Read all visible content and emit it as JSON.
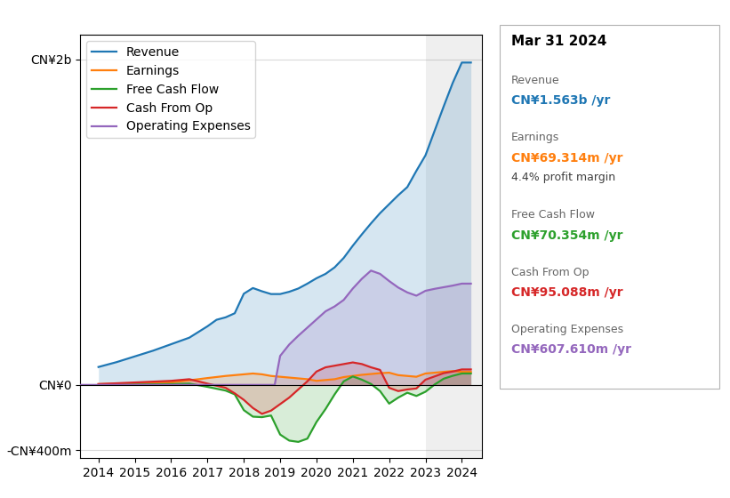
{
  "chart_data": {
    "type": "area",
    "series": [
      {
        "name": "Revenue",
        "x": [
          2014.0,
          2014.5,
          2015.0,
          2015.5,
          2016.0,
          2016.5,
          2017.0,
          2017.25,
          2017.5,
          2017.75,
          2018.0,
          2018.25,
          2018.5,
          2018.75,
          2019.0,
          2019.25,
          2019.5,
          2019.75,
          2020.0,
          2020.25,
          2020.5,
          2020.75,
          2021.0,
          2021.25,
          2021.5,
          2021.75,
          2022.0,
          2022.25,
          2022.5,
          2022.75,
          2023.0,
          2023.25,
          2023.5,
          2023.75,
          2024.0,
          2024.25
        ],
        "values": [
          110,
          140,
          175,
          210,
          250,
          290,
          360,
          400,
          415,
          440,
          560,
          595,
          575,
          558,
          558,
          572,
          592,
          622,
          655,
          682,
          722,
          780,
          855,
          925,
          992,
          1055,
          1110,
          1165,
          1215,
          1315,
          1410,
          1560,
          1710,
          1855,
          1980,
          1980
        ]
      },
      {
        "name": "Earnings",
        "x": [
          2014.0,
          2015.0,
          2016.0,
          2016.5,
          2017.0,
          2017.5,
          2018.0,
          2018.25,
          2018.5,
          2018.75,
          2019.0,
          2019.25,
          2019.5,
          2019.75,
          2020.0,
          2020.25,
          2020.5,
          2020.75,
          2021.0,
          2021.25,
          2021.5,
          2021.75,
          2022.0,
          2022.25,
          2022.5,
          2022.75,
          2023.0,
          2023.25,
          2023.5,
          2023.75,
          2024.0,
          2024.25
        ],
        "values": [
          5,
          10,
          15,
          28,
          42,
          55,
          65,
          70,
          65,
          55,
          50,
          45,
          40,
          35,
          25,
          30,
          35,
          48,
          55,
          62,
          67,
          72,
          75,
          60,
          55,
          50,
          70,
          75,
          80,
          85,
          80,
          80
        ]
      },
      {
        "name": "Free Cash Flow",
        "x": [
          2014.0,
          2015.0,
          2016.0,
          2016.5,
          2017.0,
          2017.5,
          2017.75,
          2018.0,
          2018.25,
          2018.5,
          2018.75,
          2019.0,
          2019.25,
          2019.5,
          2019.75,
          2020.0,
          2020.25,
          2020.5,
          2020.75,
          2021.0,
          2021.25,
          2021.5,
          2021.75,
          2022.0,
          2022.25,
          2022.5,
          2022.75,
          2023.0,
          2023.25,
          2023.5,
          2023.75,
          2024.0,
          2024.25
        ],
        "values": [
          0,
          2,
          5,
          8,
          -12,
          -35,
          -58,
          -155,
          -195,
          -198,
          -188,
          -305,
          -342,
          -350,
          -330,
          -228,
          -148,
          -58,
          22,
          52,
          32,
          6,
          -38,
          -115,
          -78,
          -48,
          -68,
          -42,
          2,
          38,
          56,
          70,
          70
        ]
      },
      {
        "name": "Cash From Op",
        "x": [
          2014.0,
          2015.0,
          2016.0,
          2016.5,
          2017.0,
          2017.5,
          2017.75,
          2018.0,
          2018.25,
          2018.5,
          2018.75,
          2019.0,
          2019.25,
          2019.5,
          2019.75,
          2020.0,
          2020.25,
          2020.5,
          2020.75,
          2021.0,
          2021.25,
          2021.5,
          2021.75,
          2022.0,
          2022.25,
          2022.5,
          2022.75,
          2023.0,
          2023.25,
          2023.5,
          2023.75,
          2024.0,
          2024.25
        ],
        "values": [
          5,
          15,
          25,
          35,
          8,
          -18,
          -52,
          -92,
          -142,
          -178,
          -158,
          -118,
          -78,
          -28,
          22,
          82,
          108,
          118,
          128,
          138,
          128,
          108,
          92,
          -18,
          -38,
          -28,
          -22,
          32,
          52,
          72,
          82,
          95,
          95
        ]
      },
      {
        "name": "Operating Expenses",
        "x": [
          2013.5,
          2018.85,
          2019.0,
          2019.25,
          2019.5,
          2019.75,
          2020.0,
          2020.25,
          2020.5,
          2020.75,
          2021.0,
          2021.25,
          2021.5,
          2021.75,
          2022.0,
          2022.25,
          2022.5,
          2022.75,
          2023.0,
          2023.25,
          2023.5,
          2023.75,
          2024.0,
          2024.25
        ],
        "values": [
          0,
          0,
          178,
          248,
          302,
          352,
          402,
          452,
          482,
          522,
          592,
          652,
          702,
          682,
          638,
          598,
          568,
          548,
          578,
          590,
          600,
          610,
          622,
          622
        ]
      }
    ],
    "xlim": [
      2013.5,
      2024.55
    ],
    "xticks": [
      2014,
      2015,
      2016,
      2017,
      2018,
      2019,
      2020,
      2021,
      2022,
      2023,
      2024
    ],
    "ylim": [
      -450,
      2150
    ],
    "yticks": [
      {
        "value": -400,
        "label": "-CN¥400m"
      },
      {
        "value": 0,
        "label": "CN¥0"
      },
      {
        "value": 2000,
        "label": "CN¥2b"
      }
    ],
    "shaded_x": [
      2023.0,
      2024.55
    ],
    "grid": true,
    "legend": "upper left",
    "info_box": {
      "title": "Mar 31 2024",
      "rows": [
        {
          "label": "Revenue",
          "text": "CN¥1.563b /yr"
        },
        {
          "label": "Earnings",
          "text": "CN¥69.314m /yr",
          "note": "4.4% profit margin"
        },
        {
          "label": "Free Cash Flow",
          "text": "CN¥70.354m /yr"
        },
        {
          "label": "Cash From Op",
          "text": "CN¥95.088m /yr"
        },
        {
          "label": "Operating Expenses",
          "text": "CN¥607.610m /yr"
        }
      ]
    }
  }
}
